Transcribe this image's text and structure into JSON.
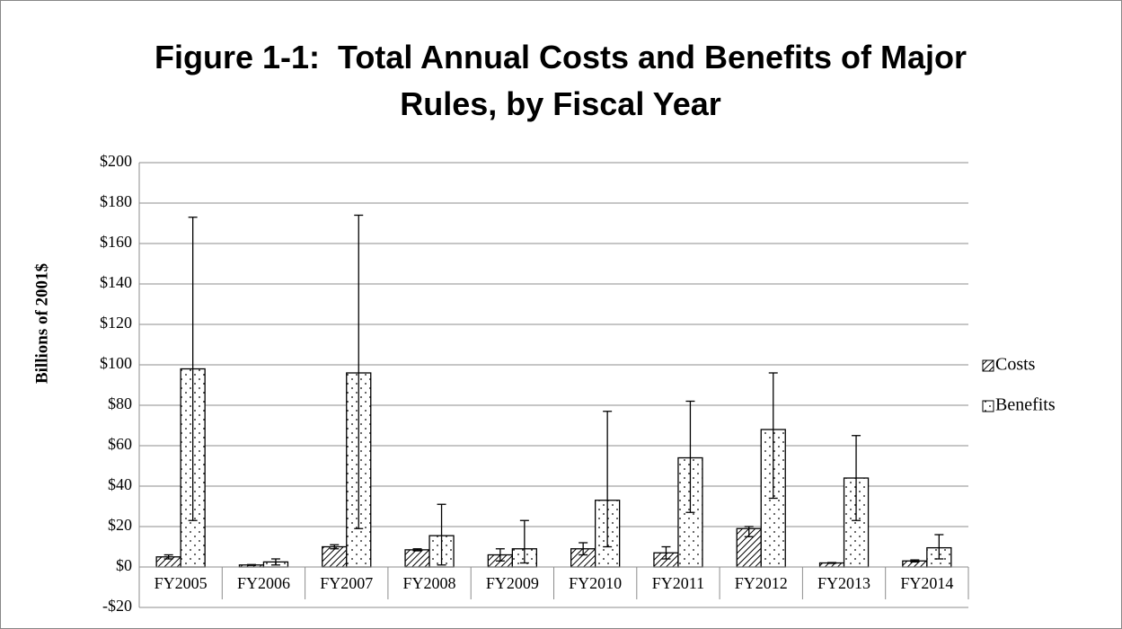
{
  "chart_data": {
    "type": "bar",
    "title": "Figure 1-1:  Total Annual Costs and Benefits of Major Rules, by Fiscal Year",
    "y_label": "Billions of 2001$",
    "categories": [
      "FY2005",
      "FY2006",
      "FY2007",
      "FY2008",
      "FY2009",
      "FY2010",
      "FY2011",
      "FY2012",
      "FY2013",
      "FY2014"
    ],
    "series": [
      {
        "name": "Costs",
        "pattern": "hatch",
        "color": "#000000",
        "values": [
          5,
          1,
          10,
          8.5,
          6,
          9,
          7,
          19,
          2,
          3
        ],
        "low": [
          4,
          0.8,
          9,
          8,
          3,
          6,
          4,
          15,
          1.8,
          2.5
        ],
        "high": [
          6,
          1.2,
          11,
          9,
          9,
          12,
          10,
          20,
          2.2,
          3.5
        ]
      },
      {
        "name": "Benefits",
        "pattern": "dots",
        "color": "#000000",
        "values": [
          98,
          2.5,
          96,
          15.5,
          9,
          33,
          54,
          68,
          44,
          9.5
        ],
        "low": [
          23,
          1,
          19,
          1,
          2,
          10,
          27,
          34,
          23,
          4
        ],
        "high": [
          173,
          4,
          174,
          31,
          23,
          77,
          82,
          96,
          65,
          16
        ]
      }
    ],
    "ylim": [
      -20,
      200
    ],
    "yticks": [
      {
        "value": -20,
        "label": "-$20"
      },
      {
        "value": 0,
        "label": "$0"
      },
      {
        "value": 20,
        "label": "$20"
      },
      {
        "value": 40,
        "label": "$40"
      },
      {
        "value": 60,
        "label": "$60"
      },
      {
        "value": 80,
        "label": "$80"
      },
      {
        "value": 100,
        "label": "$100"
      },
      {
        "value": 120,
        "label": "$120"
      },
      {
        "value": 140,
        "label": "$140"
      },
      {
        "value": 160,
        "label": "$160"
      },
      {
        "value": 180,
        "label": "$180"
      },
      {
        "value": 200,
        "label": "$200"
      }
    ],
    "grid": true,
    "legend": "right"
  }
}
